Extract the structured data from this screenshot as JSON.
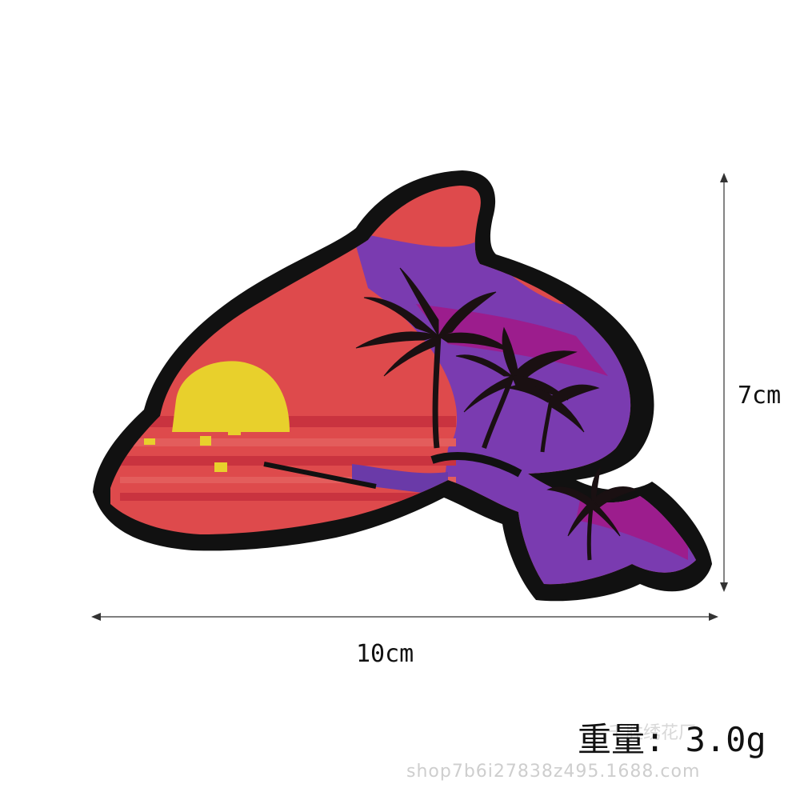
{
  "product": {
    "width_label": "10cm",
    "height_label": "7cm",
    "weight_label": "重量: 3.0g",
    "watermark": "shop7b6i27838z495.1688.com",
    "watermark_top": "千胜绣花厂"
  },
  "colors": {
    "border": "#111111",
    "body_red": "#de4a4c",
    "stripe_red": "#c9333f",
    "purple": "#7a3bb0",
    "magenta": "#9c1d8d",
    "sun_yellow": "#e8d02c",
    "palm": "#1a1012"
  }
}
